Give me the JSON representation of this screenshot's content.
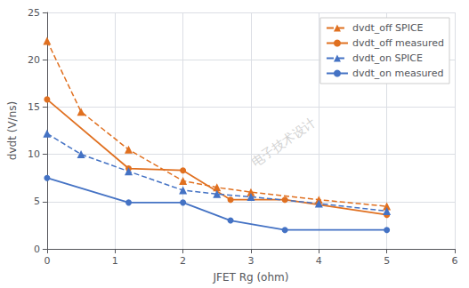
{
  "chart_data": {
    "type": "line",
    "xlabel": "JFET Rg (ohm)",
    "ylabel": "dvdt (V/ns)",
    "xlim": [
      0,
      6
    ],
    "xticks": [
      0,
      1,
      2,
      3,
      4,
      5,
      6
    ],
    "ylim": [
      0,
      25
    ],
    "yticks": [
      0,
      5,
      10,
      15,
      20,
      25
    ],
    "grid": true,
    "legend": "upper right",
    "annotations": [
      "电子技术设计"
    ],
    "series": [
      {
        "name": "dvdt_off SPICE",
        "color": "#E07020",
        "line_style": "dashed",
        "marker": "triangle",
        "x": [
          0,
          0.5,
          1.2,
          2.0,
          2.5,
          3.0,
          4.0,
          5.0
        ],
        "values": [
          22.0,
          14.5,
          10.5,
          7.2,
          6.5,
          6.0,
          5.2,
          4.5
        ]
      },
      {
        "name": "dvdt_off measured",
        "color": "#E07020",
        "line_style": "solid",
        "marker": "circle",
        "x": [
          0,
          1.2,
          2.0,
          2.7,
          3.5,
          5.0
        ],
        "values": [
          15.8,
          8.5,
          8.3,
          5.2,
          5.2,
          3.6
        ]
      },
      {
        "name": "dvdt_on SPICE",
        "color": "#4472C4",
        "line_style": "dashed",
        "marker": "triangle",
        "x": [
          0,
          0.5,
          1.2,
          2.0,
          2.5,
          3.0,
          4.0,
          5.0
        ],
        "values": [
          12.2,
          10.0,
          8.2,
          6.2,
          5.8,
          5.5,
          4.8,
          4.0
        ]
      },
      {
        "name": "dvdt_on measured",
        "color": "#4472C4",
        "line_style": "solid",
        "marker": "circle",
        "x": [
          0,
          1.2,
          2.0,
          2.7,
          3.5,
          5.0
        ],
        "values": [
          7.5,
          4.9,
          4.9,
          3.0,
          2.0,
          2.0
        ]
      }
    ]
  }
}
